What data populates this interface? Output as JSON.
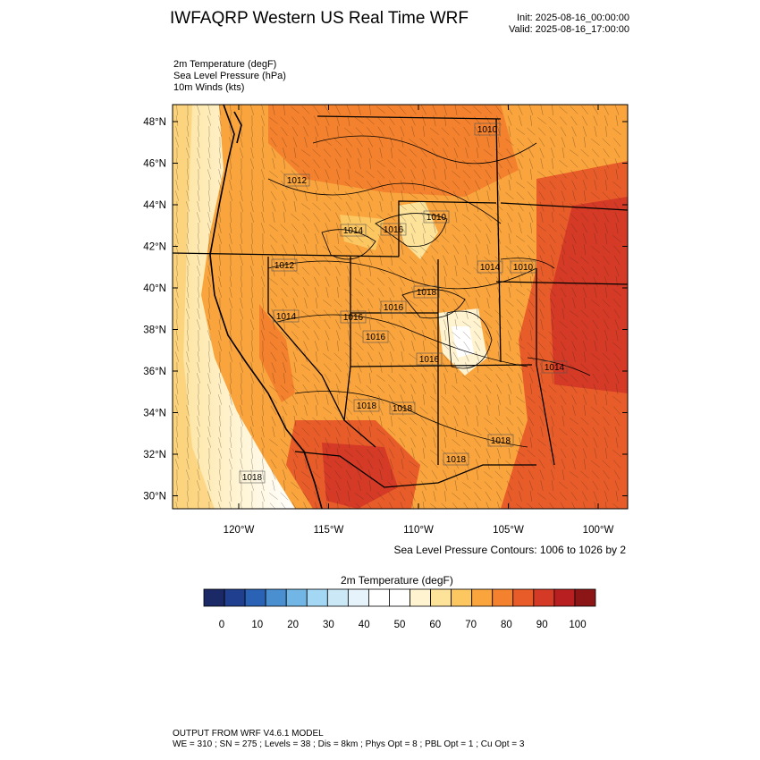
{
  "header": {
    "title": "IWFAQRP Western US Real Time WRF",
    "init": "Init: 2025-08-16_00:00:00",
    "valid": "Valid: 2025-08-16_17:00:00"
  },
  "fields": [
    "2m Temperature   (degF)",
    "Sea Level Pressure   (hPa)",
    "10m Winds   (kts)"
  ],
  "map": {
    "lat_labels": [
      "48°N",
      "46°N",
      "44°N",
      "42°N",
      "40°N",
      "38°N",
      "36°N",
      "34°N",
      "32°N",
      "30°N"
    ],
    "lon_labels": [
      "120°W",
      "115°W",
      "110°W",
      "105°W",
      "100°W"
    ],
    "pressure_labels": [
      "1010",
      "1012",
      "1010",
      "1012",
      "1014",
      "1010",
      "1014",
      "1016",
      "1014",
      "1016",
      "1018",
      "1016",
      "1016",
      "1016",
      "1018",
      "1018",
      "1018",
      "1018",
      "1014",
      "1018"
    ],
    "contour_note": "Sea Level Pressure Contours: 1006 to 1026 by 2"
  },
  "colorbar": {
    "title": "2m Temperature  (degF)",
    "colors": [
      "#1b2a66",
      "#203f8f",
      "#2a63b5",
      "#4a8fd0",
      "#72b6e6",
      "#a3d7f4",
      "#cbe8f7",
      "#e6f3fb",
      "#ffffff",
      "#ffffff",
      "#fff3d0",
      "#fde29a",
      "#fcc660",
      "#f9a43d",
      "#f3812d",
      "#e85c2a",
      "#d43a26",
      "#b81f20",
      "#8c1516"
    ],
    "tick_labels": [
      "0",
      "10",
      "20",
      "30",
      "40",
      "50",
      "60",
      "70",
      "80",
      "90",
      "100"
    ]
  },
  "footer": {
    "line1": "OUTPUT FROM WRF V4.6.1 MODEL",
    "line2": "WE = 310 ; SN = 275 ; Levels = 38 ; Dis = 8km ; Phys Opt = 8 ; PBL Opt = 1 ; Cu Opt = 3"
  }
}
